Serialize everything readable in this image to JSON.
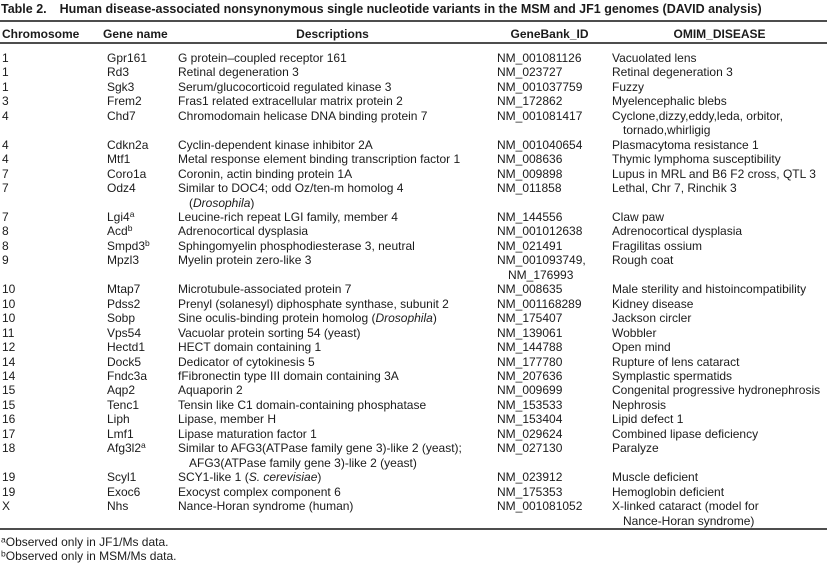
{
  "colors": {
    "background": "#ffffff",
    "text": "#1b1b1b",
    "rule": "#4d4d4d"
  },
  "table": {
    "label": "Table 2.",
    "title": "Human disease-associated nonsynonymous single nucleotide variants in the MSM and JF1 genomes (DAVID analysis)",
    "columns": [
      "Chromosome",
      "Gene name",
      "Descriptions",
      "GeneBank_ID",
      "OMIM_DISEASE"
    ],
    "rows": [
      {
        "chr": "1",
        "gene": "Gpr161",
        "desc": "G protein–coupled receptor 161",
        "gb": "NM_001081126",
        "omim": "Vacuolated lens"
      },
      {
        "chr": "1",
        "gene": "Rd3",
        "desc": "Retinal degeneration 3",
        "gb": "NM_023727",
        "omim": "Retinal degeneration 3"
      },
      {
        "chr": "1",
        "gene": "Sgk3",
        "desc": "Serum/glucocorticoid regulated kinase 3",
        "gb": "NM_001037759",
        "omim": "Fuzzy"
      },
      {
        "chr": "3",
        "gene": "Frem2",
        "desc": "Fras1 related extracellular matrix protein 2",
        "gb": "NM_172862",
        "omim": "Myelencephalic blebs"
      },
      {
        "chr": "4",
        "gene": "Chd7",
        "desc": "Chromodomain helicase DNA binding protein 7",
        "gb": "NM_001081417",
        "omim": [
          "Cyclone,dizzy,eddy,leda, orbitor,",
          "tornado,whirligig"
        ]
      },
      {
        "chr": "4",
        "gene": "Cdkn2a",
        "desc": "Cyclin-dependent kinase inhibitor 2A",
        "gb": "NM_001040654",
        "omim": "Plasmacytoma resistance 1"
      },
      {
        "chr": "4",
        "gene": "Mtf1",
        "desc": "Metal response element binding transcription factor 1",
        "gb": "NM_008636",
        "omim": "Thymic lymphoma susceptibility"
      },
      {
        "chr": "7",
        "gene": "Coro1a",
        "desc": "Coronin, actin binding protein 1A",
        "gb": "NM_009898",
        "omim": "Lupus in MRL and B6 F2 cross, QTL 3"
      },
      {
        "chr": "7",
        "gene": "Odz4",
        "desc": [
          "Similar to DOC4; odd Oz/ten-m homolog 4",
          [
            {
              "t": "("
            },
            {
              "t": "Drosophila",
              "i": true
            },
            {
              "t": ")"
            }
          ]
        ],
        "gb": "NM_011858",
        "omim": "Lethal, Chr 7, Rinchik 3"
      },
      {
        "chr": "7",
        "gene": [
          [
            {
              "t": "Lgi4"
            },
            {
              "t": "a",
              "sup": true
            }
          ]
        ],
        "desc": "Leucine-rich repeat LGI family, member 4",
        "gb": "NM_144556",
        "omim": "Claw paw"
      },
      {
        "chr": "8",
        "gene": [
          [
            {
              "t": "Acd"
            },
            {
              "t": "b",
              "sup": true
            }
          ]
        ],
        "desc": "Adrenocortical dysplasia",
        "gb": "NM_001012638",
        "omim": "Adrenocortical dysplasia"
      },
      {
        "chr": "8",
        "gene": [
          [
            {
              "t": "Smpd3"
            },
            {
              "t": "b",
              "sup": true
            }
          ]
        ],
        "desc": "Sphingomyelin phosphodiesterase 3, neutral",
        "gb": "NM_021491",
        "omim": "Fragilitas ossium"
      },
      {
        "chr": "9",
        "gene": "Mpzl3",
        "desc": "Myelin protein zero-like 3",
        "gb": [
          "NM_001093749,",
          "NM_176993"
        ],
        "omim": "Rough coat"
      },
      {
        "chr": "10",
        "gene": "Mtap7",
        "desc": "Microtubule-associated protein 7",
        "gb": "NM_008635",
        "omim": "Male sterility and histoincompatibility"
      },
      {
        "chr": "10",
        "gene": "Pdss2",
        "desc": "Prenyl (solanesyl) diphosphate synthase, subunit 2",
        "gb": "NM_001168289",
        "omim": "Kidney disease"
      },
      {
        "chr": "10",
        "gene": "Sobp",
        "desc": [
          [
            {
              "t": "Sine oculis-binding protein homolog ("
            },
            {
              "t": "Drosophila",
              "i": true
            },
            {
              "t": ")"
            }
          ]
        ],
        "gb": "NM_175407",
        "omim": "Jackson circler"
      },
      {
        "chr": "11",
        "gene": "Vps54",
        "desc": "Vacuolar protein sorting 54 (yeast)",
        "gb": "NM_139061",
        "omim": "Wobbler"
      },
      {
        "chr": "12",
        "gene": "Hectd1",
        "desc": "HECT domain containing 1",
        "gb": "NM_144788",
        "omim": "Open mind"
      },
      {
        "chr": "14",
        "gene": "Dock5",
        "desc": "Dedicator of cytokinesis 5",
        "gb": "NM_177780",
        "omim": "Rupture of lens cataract"
      },
      {
        "chr": "14",
        "gene": "Fndc3a",
        "desc": "fFibronectin type III domain containing 3A",
        "gb": "NM_207636",
        "omim": "Symplastic spermatids"
      },
      {
        "chr": "15",
        "gene": "Aqp2",
        "desc": "Aquaporin 2",
        "gb": "NM_009699",
        "omim": "Congenital progressive hydronephrosis"
      },
      {
        "chr": "15",
        "gene": "Tenc1",
        "desc": "Tensin like C1 domain-containing phosphatase",
        "gb": "NM_153533",
        "omim": "Nephrosis"
      },
      {
        "chr": "16",
        "gene": "Liph",
        "desc": "Lipase, member H",
        "gb": "NM_153404",
        "omim": "Lipid defect 1"
      },
      {
        "chr": "17",
        "gene": "Lmf1",
        "desc": "Lipase maturation factor 1",
        "gb": "NM_029624",
        "omim": "Combined lipase deficiency"
      },
      {
        "chr": "18",
        "gene": [
          [
            {
              "t": "Afg3l2"
            },
            {
              "t": "a",
              "sup": true
            }
          ]
        ],
        "desc": [
          "Similar to AFG3(ATPase family gene 3)-like 2 (yeast);",
          "AFG3(ATPase family gene 3)-like 2 (yeast)"
        ],
        "gb": "NM_027130",
        "omim": "Paralyze"
      },
      {
        "chr": "19",
        "gene": "Scyl1",
        "desc": [
          [
            {
              "t": "SCY1-like 1 ("
            },
            {
              "t": "S. cerevisiae",
              "i": true
            },
            {
              "t": ")"
            }
          ]
        ],
        "gb": "NM_023912",
        "omim": "Muscle deficient"
      },
      {
        "chr": "19",
        "gene": "Exoc6",
        "desc": "Exocyst complex component 6",
        "gb": "NM_175353",
        "omim": "Hemoglobin deficient"
      },
      {
        "chr": "X",
        "gene": "Nhs",
        "desc": "Nance-Horan syndrome (human)",
        "gb": "NM_001081052",
        "omim": [
          "X-linked cataract (model for",
          "Nance-Horan syndrome)"
        ]
      }
    ],
    "footnotes": [
      {
        "sup": "a",
        "text": "Observed only in JF1/Ms data."
      },
      {
        "sup": "b",
        "text": "Observed only in MSM/Ms data."
      }
    ]
  }
}
